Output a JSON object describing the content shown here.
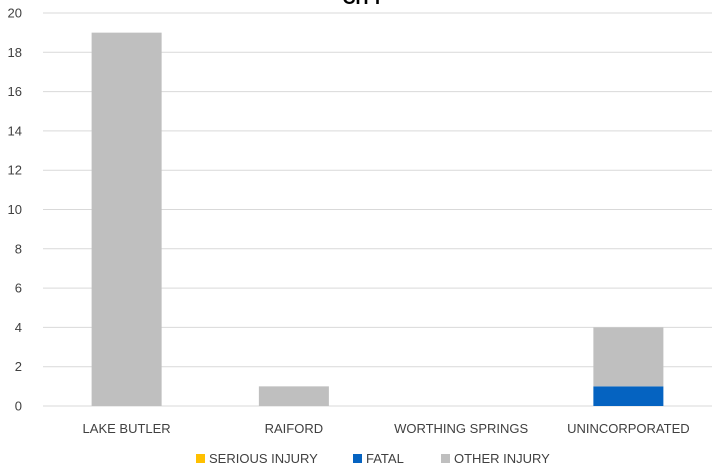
{
  "chart_data": {
    "type": "bar",
    "stacked": true,
    "title": "CITY",
    "categories": [
      "LAKE BUTLER",
      "RAIFORD",
      "WORTHING SPRINGS",
      "UNINCORPORATED"
    ],
    "series": [
      {
        "name": "SERIOUS INJURY",
        "values": [
          0,
          0,
          0,
          0
        ],
        "color": "#FFC000"
      },
      {
        "name": "FATAL",
        "values": [
          0,
          0,
          0,
          1
        ],
        "color": "#0563C1"
      },
      {
        "name": "OTHER INJURY",
        "values": [
          19,
          1,
          0,
          3
        ],
        "color": "#BFBFBF"
      }
    ],
    "ylim": [
      0,
      20
    ],
    "yticks": [
      0,
      2,
      4,
      6,
      8,
      10,
      12,
      14,
      16,
      18,
      20
    ],
    "grid": true,
    "legend": "bottom"
  }
}
